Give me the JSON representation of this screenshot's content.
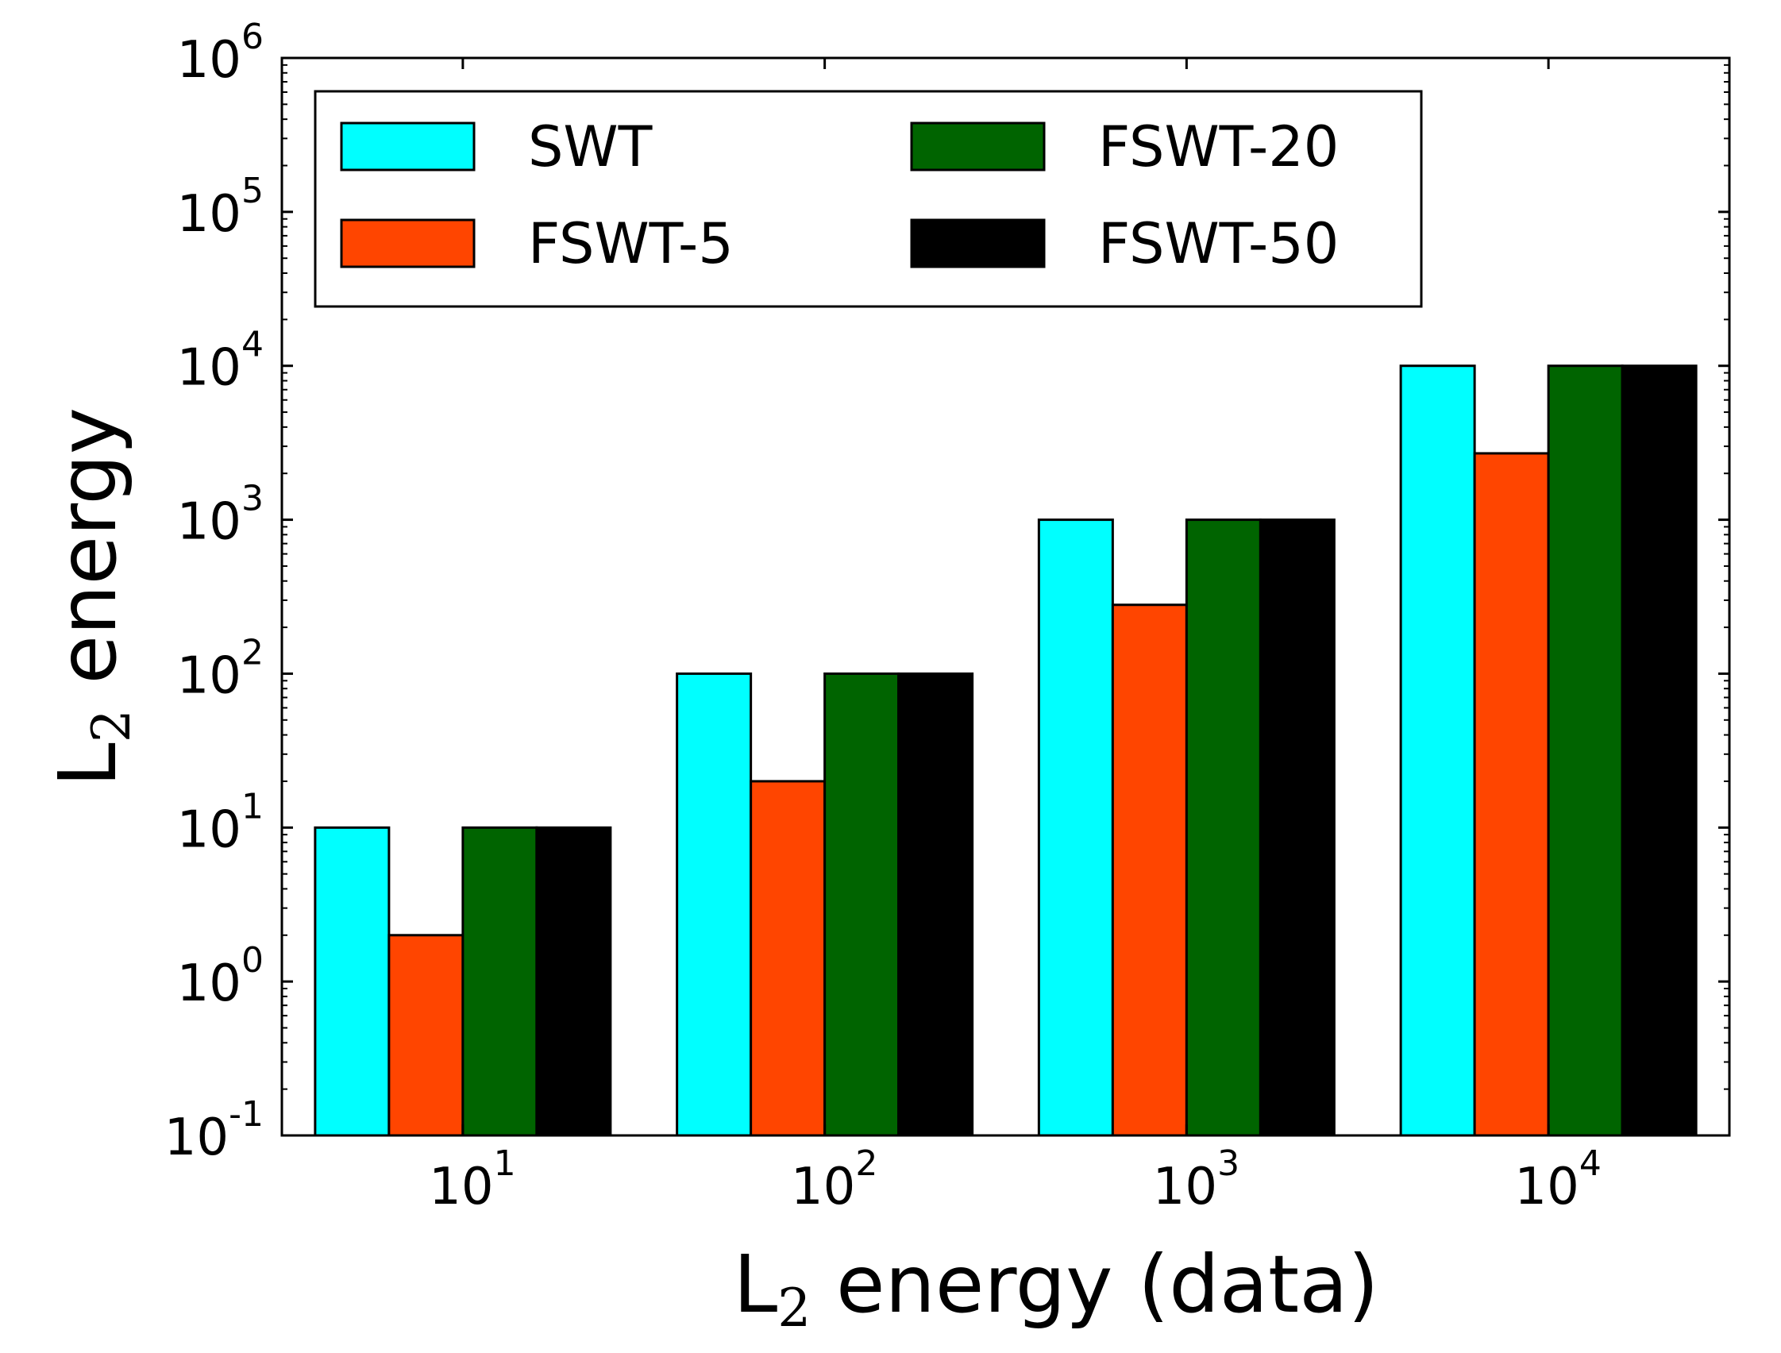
{
  "chart_data": {
    "type": "bar",
    "yscale": "log",
    "ylim": [
      0.1,
      1000000
    ],
    "categories": [
      "10^1",
      "10^2",
      "10^3",
      "10^4"
    ],
    "category_labels": [
      {
        "base": "10",
        "exp": "1"
      },
      {
        "base": "10",
        "exp": "2"
      },
      {
        "base": "10",
        "exp": "3"
      },
      {
        "base": "10",
        "exp": "4"
      }
    ],
    "y_ticks": [
      {
        "base": "10",
        "exp": "-1"
      },
      {
        "base": "10",
        "exp": "0"
      },
      {
        "base": "10",
        "exp": "1"
      },
      {
        "base": "10",
        "exp": "2"
      },
      {
        "base": "10",
        "exp": "3"
      },
      {
        "base": "10",
        "exp": "4"
      },
      {
        "base": "10",
        "exp": "5"
      },
      {
        "base": "10",
        "exp": "6"
      }
    ],
    "xlabel": {
      "main": "L",
      "sub": "2",
      "rest": " energy (data)"
    },
    "ylabel": {
      "main": "L",
      "sub": "2",
      "rest": " energy"
    },
    "legend": {
      "placement": "upper-left",
      "columns": 2
    },
    "series": [
      {
        "name": "SWT",
        "color": "#00ffff",
        "values": [
          10,
          100,
          1000,
          10000
        ]
      },
      {
        "name": "FSWT-5",
        "color": "#ff4500",
        "values": [
          2,
          20,
          280,
          2700
        ]
      },
      {
        "name": "FSWT-20",
        "color": "#006400",
        "values": [
          10,
          100,
          1000,
          10000
        ]
      },
      {
        "name": "FSWT-50",
        "color": "#000000",
        "values": [
          10,
          100,
          1000,
          10000
        ]
      }
    ]
  }
}
